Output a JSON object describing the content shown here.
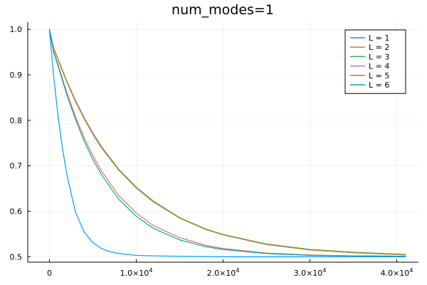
{
  "chart_data": {
    "type": "line",
    "title": "num_modes=1",
    "xlabel": "",
    "ylabel": "",
    "xlim": [
      -2500,
      42500
    ],
    "ylim": [
      0.488,
      1.016
    ],
    "grid": true,
    "legend_position": "top-right",
    "x_ticks": [
      {
        "value": 0,
        "mantissa": "0",
        "exponent": ""
      },
      {
        "value": 10000,
        "mantissa": "1.0×10",
        "exponent": "4"
      },
      {
        "value": 20000,
        "mantissa": "2.0×10",
        "exponent": "4"
      },
      {
        "value": 30000,
        "mantissa": "3.0×10",
        "exponent": "4"
      },
      {
        "value": 40000,
        "mantissa": "4.0×10",
        "exponent": "4"
      }
    ],
    "y_ticks": [
      {
        "value": 0.5,
        "label": "0.5"
      },
      {
        "value": 0.6,
        "label": "0.6"
      },
      {
        "value": 0.7,
        "label": "0.7"
      },
      {
        "value": 0.8,
        "label": "0.8"
      },
      {
        "value": 0.9,
        "label": "0.9"
      },
      {
        "value": 1.0,
        "label": "1.0"
      }
    ],
    "series": [
      {
        "name": "L = 1",
        "color": "#009af9",
        "x": [
          0,
          500,
          1000,
          1500,
          2000,
          3000,
          4000,
          5000,
          6000,
          7000,
          8000,
          10000,
          12000,
          15000,
          20000,
          25000,
          30000,
          35000,
          41000
        ],
        "y": [
          1.0,
          0.894,
          0.808,
          0.738,
          0.681,
          0.598,
          0.554,
          0.531,
          0.518,
          0.511,
          0.507,
          0.503,
          0.502,
          0.501,
          0.5,
          0.5,
          0.5,
          0.5,
          0.5
        ]
      },
      {
        "name": "L = 2",
        "color": "#e26f46",
        "x": [
          0,
          500,
          1000,
          2000,
          3000,
          4000,
          5000,
          6000,
          8000,
          10000,
          12000,
          15000,
          18000,
          20000,
          25000,
          30000,
          35000,
          41000
        ],
        "y": [
          1.0,
          0.95,
          0.922,
          0.861,
          0.808,
          0.761,
          0.722,
          0.688,
          0.634,
          0.596,
          0.568,
          0.542,
          0.525,
          0.518,
          0.508,
          0.504,
          0.502,
          0.501
        ]
      },
      {
        "name": "L = 3",
        "color": "#3da44d",
        "x": [
          0,
          500,
          1000,
          2000,
          3000,
          4000,
          5000,
          6000,
          8000,
          10000,
          12000,
          15000,
          18000,
          20000,
          25000,
          30000,
          35000,
          41000
        ],
        "y": [
          1.0,
          0.958,
          0.935,
          0.886,
          0.844,
          0.806,
          0.772,
          0.742,
          0.692,
          0.653,
          0.622,
          0.586,
          0.561,
          0.549,
          0.528,
          0.516,
          0.51,
          0.505
        ]
      },
      {
        "name": "L = 4",
        "color": "#c271d2",
        "x": [
          0,
          500,
          1000,
          2000,
          3000,
          4000,
          5000,
          6000,
          8000,
          10000,
          12000,
          15000,
          18000,
          20000,
          25000,
          30000,
          35000,
          41000
        ],
        "y": [
          1.0,
          0.957,
          0.934,
          0.885,
          0.843,
          0.805,
          0.771,
          0.741,
          0.691,
          0.652,
          0.621,
          0.585,
          0.56,
          0.548,
          0.527,
          0.515,
          0.509,
          0.504
        ]
      },
      {
        "name": "L = 5",
        "color": "#ac8d18",
        "x": [
          0,
          500,
          1000,
          2000,
          3000,
          4000,
          5000,
          6000,
          8000,
          10000,
          12000,
          15000,
          18000,
          20000,
          25000,
          30000,
          35000,
          41000
        ],
        "y": [
          1.0,
          0.956,
          0.933,
          0.884,
          0.841,
          0.803,
          0.769,
          0.739,
          0.69,
          0.651,
          0.62,
          0.585,
          0.56,
          0.548,
          0.527,
          0.515,
          0.509,
          0.504
        ]
      },
      {
        "name": "L = 6",
        "color": "#00a9ad",
        "x": [
          0,
          500,
          1000,
          2000,
          3000,
          4000,
          5000,
          6000,
          8000,
          10000,
          12000,
          15000,
          18000,
          20000,
          25000,
          30000,
          35000,
          41000
        ],
        "y": [
          1.0,
          0.948,
          0.919,
          0.856,
          0.802,
          0.754,
          0.714,
          0.68,
          0.626,
          0.589,
          0.562,
          0.537,
          0.522,
          0.516,
          0.507,
          0.503,
          0.502,
          0.501
        ]
      }
    ]
  }
}
